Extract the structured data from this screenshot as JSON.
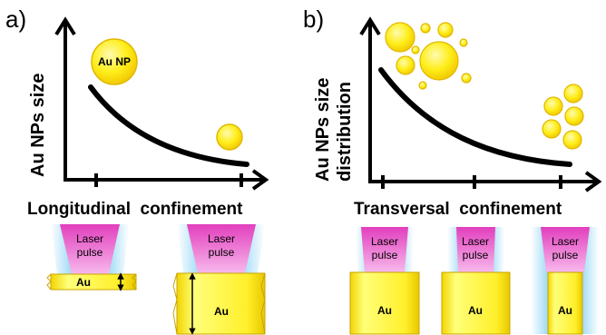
{
  "panel_a": {
    "letter": "a)",
    "y_axis_label": "Au NPs size",
    "x_axis_label": "Longitudinal  confinement",
    "np_label": "Au NP",
    "laser_label_line1": "Laser",
    "laser_label_line2": "pulse",
    "thin_target_label": "Au",
    "thick_target_label": "Au"
  },
  "panel_b": {
    "letter": "b)",
    "y_axis_label_line1": "Au NPs size",
    "y_axis_label_line2": "distribution",
    "x_axis_label": "Transversal  confinement",
    "laser_label_line1": "Laser",
    "laser_label_line2": "pulse",
    "target_label": "Au"
  },
  "colors": {
    "gold_fill": "#ffee1a",
    "gold_edge": "#e0b800",
    "laser_pink": "#e94fc4",
    "laser_glow": "#86d4f4",
    "axis": "#000000"
  }
}
